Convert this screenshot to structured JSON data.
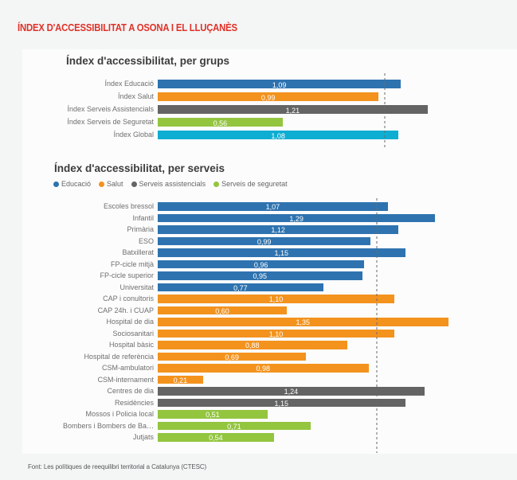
{
  "page": {
    "title": "ÍNDEX D'ACCESSIBILITAT A OSONA I EL LLUÇANÈS",
    "footer": "Font: Les polítiques de reequilibri territorial a Catalunya (CTESC)"
  },
  "colors": {
    "educacio": "#2e73af",
    "salut": "#f3931e",
    "assistencials": "#646464",
    "seguretat": "#93c53f",
    "global": "#0eadd2",
    "title_red": "#e03127",
    "reference_line": "#b3b3b3"
  },
  "chart_data": [
    {
      "type": "bar",
      "orientation": "horizontal",
      "title": "Índex d'accessibilitat, per grups",
      "xlim": [
        0,
        1.5
      ],
      "reference_line": 1.0,
      "grid": false,
      "bars": [
        {
          "label": "Índex Educació",
          "value": 1.09,
          "display": "1,09",
          "group": "educacio"
        },
        {
          "label": "Índex Salut",
          "value": 0.99,
          "display": "0,99",
          "group": "salut"
        },
        {
          "label": "Índex Serveis Assistencials",
          "value": 1.21,
          "display": "1,21",
          "group": "assistencials"
        },
        {
          "label": "Índex Serveis de Seguretat",
          "value": 0.56,
          "display": "0,56",
          "group": "seguretat"
        },
        {
          "label": "Índex Global",
          "value": 1.08,
          "display": "1,08",
          "group": "global"
        }
      ]
    },
    {
      "type": "bar",
      "orientation": "horizontal",
      "title": "Índex d'accessibilitat, per serveis",
      "xlim": [
        0,
        1.5
      ],
      "reference_line": 1.0,
      "grid": false,
      "legend": [
        {
          "label": "Educació",
          "group": "educacio"
        },
        {
          "label": "Salut",
          "group": "salut"
        },
        {
          "label": "Serveis assistencials",
          "group": "assistencials"
        },
        {
          "label": "Serveis de seguretat",
          "group": "seguretat"
        }
      ],
      "bars": [
        {
          "label": "Escoles bressol",
          "value": 1.07,
          "display": "1,07",
          "group": "educacio"
        },
        {
          "label": "Infantil",
          "value": 1.29,
          "display": "1,29",
          "group": "educacio"
        },
        {
          "label": "Primària",
          "value": 1.12,
          "display": "1,12",
          "group": "educacio"
        },
        {
          "label": "ESO",
          "value": 0.99,
          "display": "0,99",
          "group": "educacio"
        },
        {
          "label": "Batxillerat",
          "value": 1.15,
          "display": "1,15",
          "group": "educacio"
        },
        {
          "label": "FP-cicle mitjà",
          "value": 0.96,
          "display": "0,96",
          "group": "educacio"
        },
        {
          "label": "FP-cicle superior",
          "value": 0.95,
          "display": "0,95",
          "group": "educacio"
        },
        {
          "label": "Universitat",
          "value": 0.77,
          "display": "0,77",
          "group": "educacio"
        },
        {
          "label": "CAP i conultoris",
          "value": 1.1,
          "display": "1,10",
          "group": "salut"
        },
        {
          "label": "CAP 24h. i CUAP",
          "value": 0.6,
          "display": "0,60",
          "group": "salut"
        },
        {
          "label": "Hospital de dia",
          "value": 1.35,
          "display": "1,35",
          "group": "salut"
        },
        {
          "label": "Sociosanitari",
          "value": 1.1,
          "display": "1,10",
          "group": "salut"
        },
        {
          "label": "Hospital bàsic",
          "value": 0.88,
          "display": "0,88",
          "group": "salut"
        },
        {
          "label": "Hospital de referència",
          "value": 0.69,
          "display": "0,69",
          "group": "salut"
        },
        {
          "label": "CSM-ambulatori",
          "value": 0.98,
          "display": "0,98",
          "group": "salut"
        },
        {
          "label": "CSM-internament",
          "value": 0.21,
          "display": "0,21",
          "group": "salut"
        },
        {
          "label": "Centres de dia",
          "value": 1.24,
          "display": "1,24",
          "group": "assistencials"
        },
        {
          "label": "Residències",
          "value": 1.15,
          "display": "1,15",
          "group": "assistencials"
        },
        {
          "label": "Mossos i Policia local",
          "value": 0.51,
          "display": "0,51",
          "group": "seguretat"
        },
        {
          "label": "Bombers i Bombers de Ba…",
          "value": 0.71,
          "display": "0,71",
          "group": "seguretat"
        },
        {
          "label": "Jutjats",
          "value": 0.54,
          "display": "0,54",
          "group": "seguretat"
        }
      ]
    }
  ]
}
